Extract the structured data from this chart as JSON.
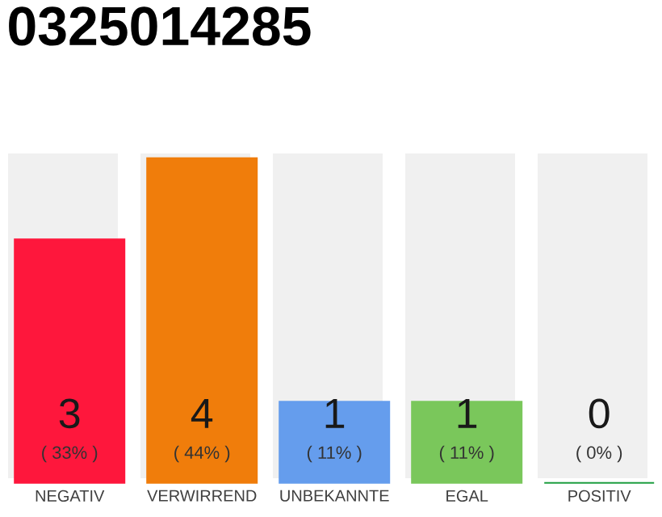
{
  "chart_data": {
    "type": "bar",
    "title": "0325014285",
    "categories": [
      "NEGATIV",
      "VERWIRREND",
      "UNBEKANNTE",
      "EGAL",
      "POSITIV"
    ],
    "values": [
      3,
      4,
      1,
      1,
      0
    ],
    "colors": [
      "#fe173c",
      "#f07d0b",
      "#659ded",
      "#7ac75b",
      "#1e9e40"
    ],
    "ylim": [
      0,
      4
    ],
    "tick_labels": "x",
    "data_labels": true,
    "annotations": [
      "( 33% )",
      "( 44% )",
      "( 11% )",
      "( 11% )",
      "( 0% )"
    ]
  }
}
